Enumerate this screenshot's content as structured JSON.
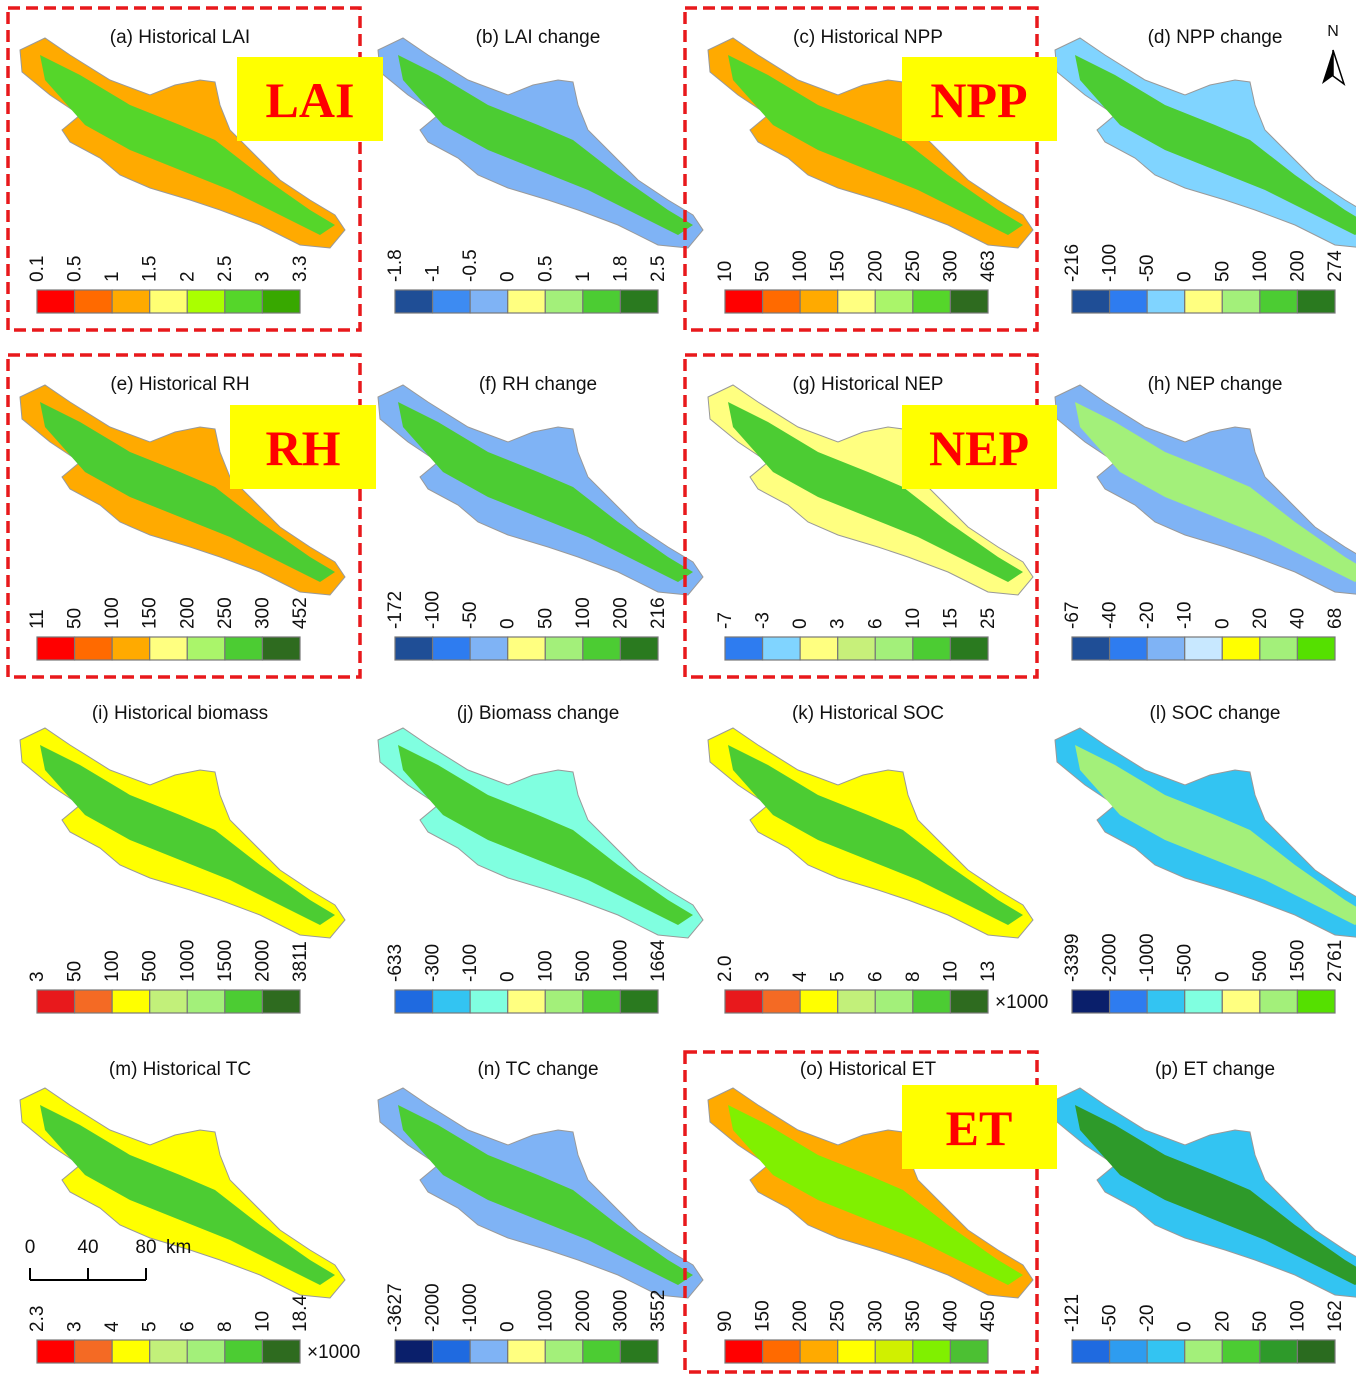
{
  "panels": [
    {
      "title": "(a) Historical LAI",
      "labels": [
        "0.1",
        "0.5",
        "1",
        "1.5",
        "2",
        "2.5",
        "3",
        "3.3"
      ],
      "colors": [
        "#ff0000",
        "#ff6a00",
        "#ffaa00",
        "#ffff73",
        "#aaff00",
        "#55d62a",
        "#38a800"
      ]
    },
    {
      "title": "(b) LAI change",
      "labels": [
        "-1.8",
        "-1",
        "-0.5",
        "0",
        "0.5",
        "1",
        "1.8",
        "2.5"
      ],
      "colors": [
        "#1f4e96",
        "#3d8bf2",
        "#7fb3f5",
        "#ffff80",
        "#a3f07a",
        "#4ccc33",
        "#2a7a1f"
      ]
    },
    {
      "title": "(c) Historical NPP",
      "labels": [
        "10",
        "50",
        "100",
        "150",
        "200",
        "250",
        "300",
        "463"
      ],
      "colors": [
        "#ff0000",
        "#ff6a00",
        "#ffaa00",
        "#ffff80",
        "#aaf56a",
        "#55d62a",
        "#2e6b1f"
      ]
    },
    {
      "title": "(d) NPP change",
      "labels": [
        "-216",
        "-100",
        "-50",
        "0",
        "50",
        "100",
        "200",
        "274"
      ],
      "colors": [
        "#1f4e96",
        "#2e7cf0",
        "#80d4ff",
        "#ffff80",
        "#a3f07a",
        "#4ccc33",
        "#2a7a1f"
      ]
    },
    {
      "title": "(e) Historical RH",
      "labels": [
        "11",
        "50",
        "100",
        "150",
        "200",
        "250",
        "300",
        "452"
      ],
      "colors": [
        "#ff0000",
        "#ff6a00",
        "#ffaa00",
        "#ffff80",
        "#aaf56a",
        "#4ccc33",
        "#2e6b1f"
      ]
    },
    {
      "title": "(f) RH change",
      "labels": [
        "-172",
        "-100",
        "-50",
        "0",
        "50",
        "100",
        "200",
        "216"
      ],
      "colors": [
        "#1f4e96",
        "#2e7cf0",
        "#7fb3f5",
        "#ffff80",
        "#a3f07a",
        "#4ccc33",
        "#2a7a1f"
      ]
    },
    {
      "title": "(g) Historical NEP",
      "labels": [
        "-7",
        "-3",
        "0",
        "3",
        "6",
        "10",
        "15",
        "25"
      ],
      "colors": [
        "#2e7cf0",
        "#80d4ff",
        "#ffff80",
        "#c7f07a",
        "#a3f07a",
        "#4ccc33",
        "#2a7a1f"
      ]
    },
    {
      "title": "(h) NEP change",
      "labels": [
        "-67",
        "-40",
        "-20",
        "-10",
        "0",
        "20",
        "40",
        "68"
      ],
      "colors": [
        "#1f4e96",
        "#2e7cf0",
        "#7fb3f5",
        "#c8e8ff",
        "#ffff00",
        "#a3f07a",
        "#55e000"
      ]
    },
    {
      "title": "(i) Historical biomass",
      "labels": [
        "3",
        "50",
        "100",
        "500",
        "1000",
        "1500",
        "2000",
        "3811"
      ],
      "colors": [
        "#e8191c",
        "#f46a24",
        "#ffff00",
        "#c2f07a",
        "#a3f07a",
        "#4ccc33",
        "#2e6b1f"
      ]
    },
    {
      "title": "(j) Biomass change",
      "labels": [
        "-633",
        "-300",
        "-100",
        "0",
        "100",
        "500",
        "1000",
        "1664"
      ],
      "colors": [
        "#1f6ae0",
        "#33c4f2",
        "#80ffe0",
        "#ffff80",
        "#a3f07a",
        "#4ccc33",
        "#2a7a1f"
      ]
    },
    {
      "title": "(k) Historical SOC",
      "labels": [
        "2.0",
        "3",
        "4",
        "5",
        "6",
        "8",
        "10",
        "13"
      ],
      "colors": [
        "#e8191c",
        "#f46a24",
        "#ffff00",
        "#c2f07a",
        "#a3f07a",
        "#4ccc33",
        "#2e6b1f"
      ],
      "multiplier": "×1000"
    },
    {
      "title": "(l) SOC change",
      "labels": [
        "-3399",
        "-2000",
        "-1000",
        "-500",
        "0",
        "500",
        "1500",
        "2761"
      ],
      "colors": [
        "#0a1f6b",
        "#2e7cf0",
        "#33c4f2",
        "#80ffe0",
        "#ffff80",
        "#a3f07a",
        "#55e000"
      ]
    },
    {
      "title": "(m) Historical TC",
      "labels": [
        "2.3",
        "3",
        "4",
        "5",
        "6",
        "8",
        "10",
        "18.4"
      ],
      "colors": [
        "#ff0000",
        "#f46a24",
        "#ffff00",
        "#c2f07a",
        "#a3f07a",
        "#4ccc33",
        "#2e6b1f"
      ],
      "multiplier": "×1000"
    },
    {
      "title": "(n) TC change",
      "labels": [
        "-3627",
        "-2000",
        "-1000",
        "0",
        "1000",
        "2000",
        "3000",
        "3552"
      ],
      "colors": [
        "#0a1f6b",
        "#1f6ae0",
        "#7fb3f5",
        "#ffff80",
        "#a3f07a",
        "#4ccc33",
        "#2a7a1f"
      ]
    },
    {
      "title": "(o) Historical ET",
      "labels": [
        "90",
        "150",
        "200",
        "250",
        "300",
        "350",
        "400",
        "450"
      ],
      "colors": [
        "#ff0000",
        "#ff6a00",
        "#ffaa00",
        "#ffff00",
        "#d0f000",
        "#80f000",
        "#4cc033"
      ]
    },
    {
      "title": "(p) ET change",
      "labels": [
        "-121",
        "-50",
        "-20",
        "0",
        "20",
        "50",
        "100",
        "162"
      ],
      "colors": [
        "#1f6ae0",
        "#2e9cf0",
        "#33c4f2",
        "#a3f07a",
        "#4ccc33",
        "#2e9a2a",
        "#2a6b1f"
      ]
    }
  ],
  "highlights": [
    {
      "panel": 0,
      "label": "LAI"
    },
    {
      "panel": 2,
      "label": "NPP"
    },
    {
      "panel": 4,
      "label": "RH"
    },
    {
      "panel": 6,
      "label": "NEP"
    },
    {
      "panel": 14,
      "label": "ET"
    }
  ],
  "scale_bar": {
    "ticks": [
      "0",
      "40",
      "80"
    ],
    "unit": "km"
  },
  "north": "N"
}
